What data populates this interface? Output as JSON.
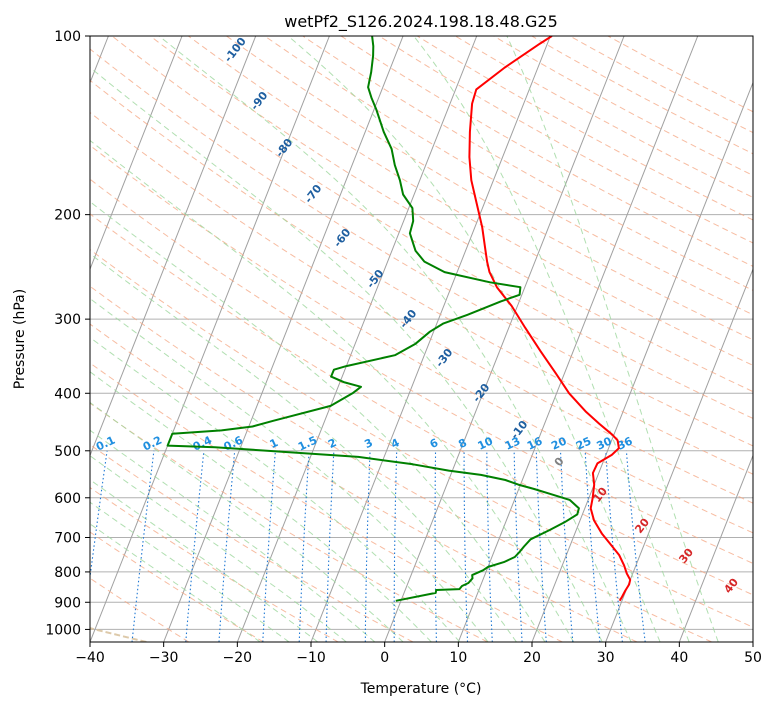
{
  "chart_data": {
    "type": "line",
    "title": "wetPf2_S126.2024.198.18.48.G25",
    "xlabel": "Temperature (°C)",
    "ylabel": "Pressure (hPa)",
    "xlim": [
      -40,
      50
    ],
    "ylim": [
      1050,
      100
    ],
    "y_scale": "log",
    "grid": true,
    "x_ticks": [
      "−40",
      "−30",
      "−20",
      "−10",
      "0",
      "10",
      "20",
      "30",
      "40",
      "50"
    ],
    "x_tick_values": [
      -40,
      -30,
      -20,
      -10,
      0,
      10,
      20,
      30,
      40,
      50
    ],
    "y_ticks": [
      "100",
      "200",
      "300",
      "400",
      "500",
      "600",
      "700",
      "800",
      "900",
      "1000"
    ],
    "y_tick_values": [
      100,
      200,
      300,
      400,
      500,
      600,
      700,
      800,
      900,
      1000
    ],
    "skew_note": "skewed temperature axis",
    "colors": {
      "temperature": "#ff0000",
      "dewpoint": "#008000",
      "isotherm": "#a0a0a0",
      "dry_adiabat": "#f4a582",
      "moist_adiabat": "#9ed79e",
      "mixing_ratio": "#1f78d4",
      "reference_curve": "#d9c3a0",
      "dry_label": "#1f5fa0",
      "mix_label": "#1f8fe0",
      "warm_label": "#d62728",
      "zero_label": "#808080"
    },
    "series": [
      {
        "key": "temperature",
        "points": [
          [
            29.7,
            895
          ],
          [
            29.8,
            880
          ],
          [
            29.9,
            860
          ],
          [
            30.1,
            840
          ],
          [
            30.0,
            825
          ],
          [
            29.2,
            805
          ],
          [
            28.4,
            780
          ],
          [
            27.2,
            750
          ],
          [
            25.5,
            720
          ],
          [
            23.7,
            690
          ],
          [
            21.9,
            655
          ],
          [
            20.8,
            625
          ],
          [
            20.5,
            600
          ],
          [
            20.0,
            570
          ],
          [
            19.2,
            545
          ],
          [
            19.3,
            525
          ],
          [
            20.8,
            508
          ],
          [
            21.4,
            495
          ],
          [
            20.8,
            480
          ],
          [
            19.8,
            470
          ],
          [
            17.4,
            450
          ],
          [
            15.0,
            430
          ],
          [
            11.7,
            400
          ],
          [
            8.8,
            370
          ],
          [
            5.6,
            340
          ],
          [
            2.2,
            310
          ],
          [
            -0.8,
            285
          ],
          [
            -3.8,
            265
          ],
          [
            -5.6,
            250
          ],
          [
            -6.5,
            240
          ],
          [
            -7.3,
            230
          ],
          [
            -9.0,
            210
          ],
          [
            -11.2,
            190
          ],
          [
            -13.0,
            175
          ],
          [
            -14.5,
            160
          ],
          [
            -15.8,
            145
          ],
          [
            -17.0,
            130
          ],
          [
            -17.2,
            123
          ],
          [
            -14.5,
            113
          ],
          [
            -11.0,
            103
          ],
          [
            -9.8,
            100
          ]
        ]
      },
      {
        "key": "dewpoint",
        "points": [
          [
            -0.7,
            895
          ],
          [
            4.3,
            868
          ],
          [
            4.2,
            858
          ],
          [
            7.3,
            855
          ],
          [
            7.5,
            845
          ],
          [
            8.2,
            835
          ],
          [
            8.5,
            820
          ],
          [
            8.3,
            810
          ],
          [
            9.5,
            795
          ],
          [
            10.0,
            785
          ],
          [
            11.9,
            770
          ],
          [
            13.1,
            755
          ],
          [
            13.5,
            740
          ],
          [
            13.8,
            725
          ],
          [
            14.3,
            705
          ],
          [
            16.4,
            680
          ],
          [
            18.0,
            660
          ],
          [
            19.3,
            640
          ],
          [
            19.2,
            625
          ],
          [
            17.5,
            605
          ],
          [
            14.3,
            590
          ],
          [
            12.1,
            580
          ],
          [
            9.7,
            570
          ],
          [
            7.7,
            560
          ],
          [
            4.1,
            549
          ],
          [
            -0.5,
            540
          ],
          [
            -5.7,
            527
          ],
          [
            -13.5,
            512
          ],
          [
            -33.5,
            493
          ],
          [
            -40.0,
            490
          ],
          [
            -40.0,
            468
          ],
          [
            -33.5,
            462
          ],
          [
            -29.5,
            455
          ],
          [
            -27.0,
            445
          ],
          [
            -20.0,
            420
          ],
          [
            -17.7,
            400
          ],
          [
            -16.9,
            390
          ],
          [
            -19.5,
            383
          ],
          [
            -21.5,
            375
          ],
          [
            -21.5,
            365
          ],
          [
            -20.0,
            360
          ],
          [
            -14.0,
            345
          ],
          [
            -11.8,
            330
          ],
          [
            -10.5,
            315
          ],
          [
            -9.1,
            305
          ],
          [
            -6.3,
            295
          ],
          [
            -2.5,
            280
          ],
          [
            -0.3,
            273
          ],
          [
            -0.6,
            265
          ],
          [
            -5.0,
            260
          ],
          [
            -11.7,
            250
          ],
          [
            -15.0,
            240
          ],
          [
            -16.8,
            230
          ],
          [
            -18.5,
            215
          ],
          [
            -18.7,
            205
          ],
          [
            -19.5,
            195
          ],
          [
            -21.5,
            185
          ],
          [
            -22.7,
            175
          ],
          [
            -24.2,
            165
          ],
          [
            -25.5,
            155
          ],
          [
            -27.5,
            145
          ],
          [
            -29.7,
            133
          ],
          [
            -31.0,
            127
          ],
          [
            -32.0,
            122
          ],
          [
            -32.4,
            115
          ],
          [
            -33.0,
            108
          ],
          [
            -33.5,
            104
          ],
          [
            -34.2,
            100
          ]
        ]
      }
    ],
    "dry_adiabat_labels": [
      "-100",
      "-90",
      "-80",
      "-70",
      "-60",
      "-50",
      "-40",
      "-30",
      "-20",
      "-10",
      "0",
      "10",
      "20",
      "30",
      "40"
    ],
    "mixing_ratio_labels": [
      "0.1",
      "0.2",
      "0.4",
      "0.6",
      "1",
      "1.5",
      "2",
      "3",
      "4",
      "6",
      "8",
      "10",
      "13",
      "16",
      "20",
      "25",
      "30",
      "36"
    ]
  }
}
